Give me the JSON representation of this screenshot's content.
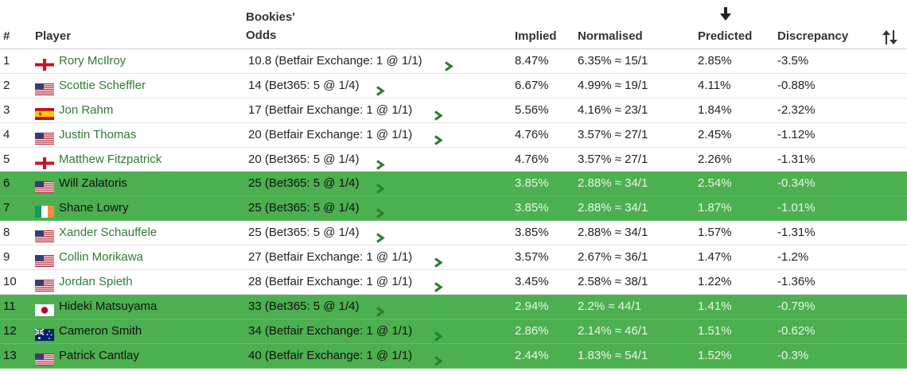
{
  "header": {
    "rank": "#",
    "player": "Player",
    "odds_line1": "Bookies'",
    "odds_line2": "Odds",
    "implied": "Implied",
    "normalised": "Normalised",
    "predicted": "Predicted",
    "discrepancy": "Discrepancy",
    "sort_icon": "arrow-down-icon",
    "sort_toggle_icon": "sort-toggle-icon"
  },
  "colors": {
    "player_link": "#2e7d32",
    "highlight_row": "#4caf50",
    "chevron": "#2e7d32"
  },
  "rows": [
    {
      "rank": "1",
      "flag": "england",
      "player": "Rory McIlroy",
      "odds": "10.8 (Betfair Exchange: 1 @ 1/1)",
      "implied": "8.47%",
      "normalised": "6.35% ≈ 15/1",
      "predicted": "2.85%",
      "discrepancy": "-3.5%",
      "highlight": false
    },
    {
      "rank": "2",
      "flag": "usa",
      "player": "Scottie Scheffler",
      "odds": "14 (Bet365: 5 @ 1/4)",
      "implied": "6.67%",
      "normalised": "4.99% ≈ 19/1",
      "predicted": "4.11%",
      "discrepancy": "-0.88%",
      "highlight": false
    },
    {
      "rank": "3",
      "flag": "spain",
      "player": "Jon Rahm",
      "odds": "17 (Betfair Exchange: 1 @ 1/1)",
      "implied": "5.56%",
      "normalised": "4.16% ≈ 23/1",
      "predicted": "1.84%",
      "discrepancy": "-2.32%",
      "highlight": false
    },
    {
      "rank": "4",
      "flag": "usa",
      "player": "Justin Thomas",
      "odds": "20 (Betfair Exchange: 1 @ 1/1)",
      "implied": "4.76%",
      "normalised": "3.57% ≈ 27/1",
      "predicted": "2.45%",
      "discrepancy": "-1.12%",
      "highlight": false
    },
    {
      "rank": "5",
      "flag": "england",
      "player": "Matthew Fitzpatrick",
      "odds": "20 (Bet365: 5 @ 1/4)",
      "implied": "4.76%",
      "normalised": "3.57% ≈ 27/1",
      "predicted": "2.26%",
      "discrepancy": "-1.31%",
      "highlight": false
    },
    {
      "rank": "6",
      "flag": "usa",
      "player": "Will Zalatoris",
      "odds": "25 (Bet365: 5 @ 1/4)",
      "implied": "3.85%",
      "normalised": "2.88% ≈ 34/1",
      "predicted": "2.54%",
      "discrepancy": "-0.34%",
      "highlight": true
    },
    {
      "rank": "7",
      "flag": "ireland",
      "player": "Shane Lowry",
      "odds": "25 (Bet365: 5 @ 1/4)",
      "implied": "3.85%",
      "normalised": "2.88% ≈ 34/1",
      "predicted": "1.87%",
      "discrepancy": "-1.01%",
      "highlight": true
    },
    {
      "rank": "8",
      "flag": "usa",
      "player": "Xander Schauffele",
      "odds": "25 (Bet365: 5 @ 1/4)",
      "implied": "3.85%",
      "normalised": "2.88% ≈ 34/1",
      "predicted": "1.57%",
      "discrepancy": "-1.31%",
      "highlight": false
    },
    {
      "rank": "9",
      "flag": "usa",
      "player": "Collin Morikawa",
      "odds": "27 (Betfair Exchange: 1 @ 1/1)",
      "implied": "3.57%",
      "normalised": "2.67% ≈ 36/1",
      "predicted": "1.47%",
      "discrepancy": "-1.2%",
      "highlight": false
    },
    {
      "rank": "10",
      "flag": "usa",
      "player": "Jordan Spieth",
      "odds": "28 (Betfair Exchange: 1 @ 1/1)",
      "implied": "3.45%",
      "normalised": "2.58% ≈ 38/1",
      "predicted": "1.22%",
      "discrepancy": "-1.36%",
      "highlight": false
    },
    {
      "rank": "11",
      "flag": "japan",
      "player": "Hideki Matsuyama",
      "odds": "33 (Bet365: 5 @ 1/4)",
      "implied": "2.94%",
      "normalised": "2.2% ≈ 44/1",
      "predicted": "1.41%",
      "discrepancy": "-0.79%",
      "highlight": true
    },
    {
      "rank": "12",
      "flag": "australia",
      "player": "Cameron Smith",
      "odds": "34 (Betfair Exchange: 1 @ 1/1)",
      "implied": "2.86%",
      "normalised": "2.14% ≈ 46/1",
      "predicted": "1.51%",
      "discrepancy": "-0.62%",
      "highlight": true
    },
    {
      "rank": "13",
      "flag": "usa",
      "player": "Patrick Cantlay",
      "odds": "40 (Betfair Exchange: 1 @ 1/1)",
      "implied": "2.44%",
      "normalised": "1.83% ≈ 54/1",
      "predicted": "1.52%",
      "discrepancy": "-0.3%",
      "highlight": true
    }
  ]
}
